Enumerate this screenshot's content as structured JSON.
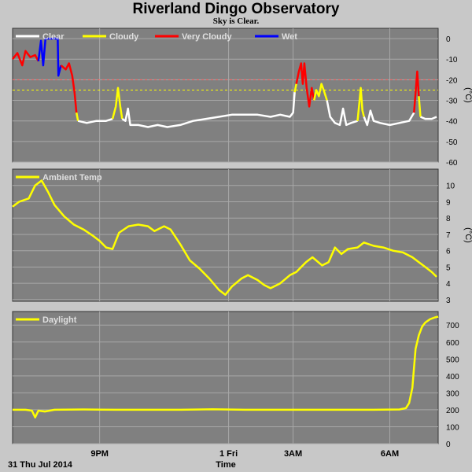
{
  "header": {
    "title": "Riverland Dingo Observatory",
    "subtitle": "Sky is Clear."
  },
  "footer": {
    "date_label": "31 Thu Jul 2014",
    "xlabel": "Time"
  },
  "colors": {
    "page_bg": "#c8c8c8",
    "plot_bg": "#808080",
    "grid": "#a8a8a8",
    "clear": "#ffffff",
    "cloudy": "#ffff00",
    "very_cloudy": "#ff0000",
    "wet": "#0000ff",
    "threshold_red": "#ff6060",
    "threshold_yellow": "#ffff00"
  },
  "chart_data": [
    {
      "type": "line",
      "name": "sky",
      "ylabel": "(°C)",
      "ylim": [
        -60,
        5
      ],
      "yticks": [
        0,
        -10,
        -20,
        -30,
        -40,
        -50,
        -60
      ],
      "xticks": [
        {
          "label": "9PM",
          "t": 21.0
        },
        {
          "label": "1 Fri",
          "t": 25.0
        },
        {
          "label": "3AM",
          "t": 27.0
        },
        {
          "label": "6AM",
          "t": 30.0
        }
      ],
      "xlim": [
        18.3,
        31.5
      ],
      "grid": true,
      "legend_position": "top-left",
      "legend": [
        {
          "label": "Clear",
          "color": "#ffffff"
        },
        {
          "label": "Cloudy",
          "color": "#ffff00"
        },
        {
          "label": "Very Cloudy",
          "color": "#ff0000"
        },
        {
          "label": "Wet",
          "color": "#0000ff"
        }
      ],
      "thresholds": [
        {
          "value": -20,
          "color": "#ff6060"
        },
        {
          "value": -25,
          "color": "#ffff00"
        }
      ],
      "series": [
        {
          "color": "#ff0000",
          "points": [
            [
              18.3,
              -10
            ],
            [
              18.45,
              -7
            ],
            [
              18.6,
              -13
            ],
            [
              18.7,
              -6
            ],
            [
              18.85,
              -9
            ],
            [
              19.0,
              -8
            ],
            [
              19.1,
              -11
            ]
          ]
        },
        {
          "color": "#0000ff",
          "points": [
            [
              19.1,
              -11
            ],
            [
              19.18,
              -1
            ],
            [
              19.25,
              -13
            ],
            [
              19.32,
              0
            ],
            [
              19.45,
              0
            ],
            [
              19.6,
              0
            ],
            [
              19.7,
              0
            ],
            [
              19.72,
              -18
            ],
            [
              19.8,
              -13
            ]
          ]
        },
        {
          "color": "#ff0000",
          "points": [
            [
              19.8,
              -13
            ],
            [
              19.95,
              -15
            ],
            [
              20.05,
              -12
            ],
            [
              20.15,
              -18
            ],
            [
              20.22,
              -26
            ],
            [
              20.28,
              -36
            ]
          ]
        },
        {
          "color": "#ffff00",
          "points": [
            [
              20.28,
              -36
            ],
            [
              20.33,
              -40
            ]
          ]
        },
        {
          "color": "#ffffff",
          "points": [
            [
              20.33,
              -40
            ],
            [
              20.6,
              -41
            ],
            [
              20.9,
              -40
            ],
            [
              21.2,
              -40
            ],
            [
              21.4,
              -39
            ]
          ]
        },
        {
          "color": "#ffff00",
          "points": [
            [
              21.4,
              -39
            ],
            [
              21.5,
              -33
            ],
            [
              21.57,
              -24
            ],
            [
              21.64,
              -33
            ],
            [
              21.7,
              -39
            ]
          ]
        },
        {
          "color": "#ffffff",
          "points": [
            [
              21.7,
              -39
            ],
            [
              21.8,
              -40
            ],
            [
              21.88,
              -34
            ],
            [
              21.95,
              -42
            ],
            [
              22.2,
              -42
            ],
            [
              22.5,
              -43
            ],
            [
              22.8,
              -42
            ],
            [
              23.1,
              -43
            ],
            [
              23.5,
              -42
            ],
            [
              23.9,
              -40
            ],
            [
              24.3,
              -39
            ],
            [
              24.7,
              -38
            ],
            [
              25.1,
              -37
            ],
            [
              25.5,
              -37
            ],
            [
              25.9,
              -37
            ],
            [
              26.3,
              -38
            ],
            [
              26.6,
              -37
            ],
            [
              26.9,
              -38
            ],
            [
              27.0,
              -36
            ],
            [
              27.05,
              -26
            ]
          ]
        },
        {
          "color": "#ffff00",
          "points": [
            [
              27.05,
              -26
            ],
            [
              27.1,
              -22
            ]
          ]
        },
        {
          "color": "#ff0000",
          "points": [
            [
              27.1,
              -22
            ],
            [
              27.18,
              -16
            ],
            [
              27.25,
              -12
            ],
            [
              27.3,
              -22
            ],
            [
              27.35,
              -12
            ],
            [
              27.42,
              -24
            ],
            [
              27.5,
              -33
            ],
            [
              27.58,
              -24
            ],
            [
              27.65,
              -30
            ]
          ]
        },
        {
          "color": "#ffff00",
          "points": [
            [
              27.65,
              -30
            ],
            [
              27.72,
              -25
            ],
            [
              27.8,
              -28
            ],
            [
              27.88,
              -22
            ],
            [
              27.95,
              -25
            ],
            [
              28.05,
              -30
            ]
          ]
        },
        {
          "color": "#ffffff",
          "points": [
            [
              28.05,
              -30
            ],
            [
              28.15,
              -38
            ],
            [
              28.3,
              -41
            ],
            [
              28.45,
              -42
            ],
            [
              28.55,
              -34
            ],
            [
              28.65,
              -42
            ],
            [
              28.8,
              -41
            ],
            [
              29.0,
              -40
            ]
          ]
        },
        {
          "color": "#ffff00",
          "points": [
            [
              29.0,
              -40
            ],
            [
              29.05,
              -32
            ],
            [
              29.1,
              -24
            ],
            [
              29.15,
              -35
            ],
            [
              29.2,
              -38
            ]
          ]
        },
        {
          "color": "#ffffff",
          "points": [
            [
              29.2,
              -38
            ],
            [
              29.3,
              -42
            ],
            [
              29.4,
              -35
            ],
            [
              29.5,
              -40
            ],
            [
              29.7,
              -41
            ],
            [
              30.0,
              -42
            ],
            [
              30.3,
              -41
            ],
            [
              30.6,
              -40
            ],
            [
              30.75,
              -36
            ]
          ]
        },
        {
          "color": "#ff0000",
          "points": [
            [
              30.75,
              -36
            ],
            [
              30.85,
              -16
            ],
            [
              30.9,
              -28
            ]
          ]
        },
        {
          "color": "#ffff00",
          "points": [
            [
              30.9,
              -28
            ],
            [
              30.95,
              -38
            ]
          ]
        },
        {
          "color": "#ffffff",
          "points": [
            [
              30.95,
              -38
            ],
            [
              31.1,
              -39
            ],
            [
              31.3,
              -39
            ],
            [
              31.45,
              -38
            ]
          ]
        }
      ]
    },
    {
      "type": "line",
      "name": "ambient",
      "ylabel": "(°C)",
      "ylim": [
        2.9,
        11.0
      ],
      "yticks": [
        10,
        9,
        8,
        7,
        6,
        5,
        4,
        3
      ],
      "xlim": [
        18.3,
        31.5
      ],
      "grid": true,
      "legend_position": "top-left",
      "legend": [
        {
          "label": "Ambient Temp",
          "color": "#ffff00"
        }
      ],
      "series": [
        {
          "color": "#ffff00",
          "points": [
            [
              18.3,
              8.7
            ],
            [
              18.5,
              9.0
            ],
            [
              18.8,
              9.2
            ],
            [
              19.0,
              10.0
            ],
            [
              19.2,
              10.3
            ],
            [
              19.4,
              9.6
            ],
            [
              19.6,
              8.8
            ],
            [
              19.9,
              8.1
            ],
            [
              20.2,
              7.6
            ],
            [
              20.5,
              7.3
            ],
            [
              20.8,
              6.9
            ],
            [
              21.0,
              6.6
            ],
            [
              21.2,
              6.2
            ],
            [
              21.4,
              6.1
            ],
            [
              21.6,
              7.1
            ],
            [
              21.9,
              7.5
            ],
            [
              22.2,
              7.6
            ],
            [
              22.5,
              7.5
            ],
            [
              22.7,
              7.2
            ],
            [
              23.0,
              7.5
            ],
            [
              23.2,
              7.3
            ],
            [
              23.5,
              6.4
            ],
            [
              23.8,
              5.4
            ],
            [
              24.1,
              4.9
            ],
            [
              24.4,
              4.3
            ],
            [
              24.7,
              3.6
            ],
            [
              24.9,
              3.3
            ],
            [
              25.1,
              3.8
            ],
            [
              25.4,
              4.3
            ],
            [
              25.6,
              4.5
            ],
            [
              25.9,
              4.2
            ],
            [
              26.1,
              3.9
            ],
            [
              26.3,
              3.7
            ],
            [
              26.6,
              4.0
            ],
            [
              26.9,
              4.5
            ],
            [
              27.1,
              4.7
            ],
            [
              27.4,
              5.3
            ],
            [
              27.6,
              5.6
            ],
            [
              27.9,
              5.1
            ],
            [
              28.1,
              5.3
            ],
            [
              28.3,
              6.2
            ],
            [
              28.5,
              5.8
            ],
            [
              28.7,
              6.1
            ],
            [
              29.0,
              6.2
            ],
            [
              29.2,
              6.5
            ],
            [
              29.5,
              6.3
            ],
            [
              29.8,
              6.2
            ],
            [
              30.1,
              6.0
            ],
            [
              30.4,
              5.9
            ],
            [
              30.7,
              5.6
            ],
            [
              30.9,
              5.3
            ],
            [
              31.1,
              5.0
            ],
            [
              31.3,
              4.7
            ],
            [
              31.45,
              4.4
            ]
          ]
        }
      ]
    },
    {
      "type": "line",
      "name": "daylight",
      "ylabel": "",
      "ylim": [
        0,
        780
      ],
      "yticks": [
        700,
        600,
        500,
        400,
        300,
        200,
        100,
        0
      ],
      "xlim": [
        18.3,
        31.5
      ],
      "grid": true,
      "legend_position": "top-left",
      "legend": [
        {
          "label": "Daylight",
          "color": "#ffff00"
        }
      ],
      "series": [
        {
          "color": "#ffff00",
          "points": [
            [
              18.3,
              200
            ],
            [
              18.7,
              200
            ],
            [
              18.9,
              195
            ],
            [
              19.0,
              155
            ],
            [
              19.1,
              195
            ],
            [
              19.3,
              190
            ],
            [
              19.6,
              200
            ],
            [
              20.5,
              202
            ],
            [
              21.5,
              200
            ],
            [
              22.5,
              200
            ],
            [
              23.5,
              200
            ],
            [
              24.5,
              203
            ],
            [
              25.5,
              200
            ],
            [
              26.5,
              200
            ],
            [
              27.5,
              200
            ],
            [
              28.5,
              200
            ],
            [
              29.5,
              200
            ],
            [
              30.3,
              202
            ],
            [
              30.5,
              210
            ],
            [
              30.6,
              240
            ],
            [
              30.7,
              330
            ],
            [
              30.75,
              450
            ],
            [
              30.8,
              560
            ],
            [
              30.9,
              640
            ],
            [
              31.0,
              690
            ],
            [
              31.1,
              715
            ],
            [
              31.25,
              735
            ],
            [
              31.4,
              745
            ],
            [
              31.5,
              750
            ]
          ]
        }
      ]
    }
  ]
}
